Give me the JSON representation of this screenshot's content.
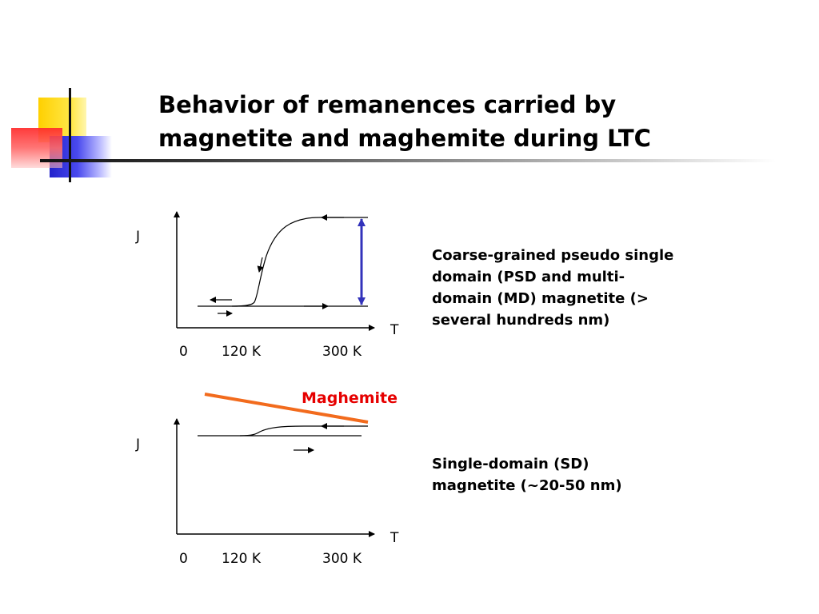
{
  "slide": {
    "title_lines": [
      "Behavior of remanences carried by",
      "magnetite and maghemite during LTC"
    ]
  },
  "diagram_top": {
    "y_axis_label": "J",
    "x_axis_label": "T",
    "ticks": [
      "0",
      "120 K",
      "300 K"
    ],
    "description_lines": [
      "Coarse-grained pseudo single",
      "domain (PSD and multi-",
      "domain (MD) magnetite (>",
      "several hundreds nm)"
    ]
  },
  "diagram_bottom": {
    "y_axis_label": "J",
    "x_axis_label": "T",
    "ticks": [
      "0",
      "120 K",
      "300 K"
    ],
    "annotation": "Maghemite",
    "description_lines": [
      "Single-domain (SD)",
      "magnetite  (~20-50 nm)"
    ]
  },
  "colors": {
    "deco_yellow": "#ffd700",
    "deco_red": "#ff3b3b",
    "deco_blue": "#2b2bdd",
    "measure_line": "#3333bb",
    "maghemite_line": "#f26b1d",
    "maghemite_text": "#e60000"
  }
}
